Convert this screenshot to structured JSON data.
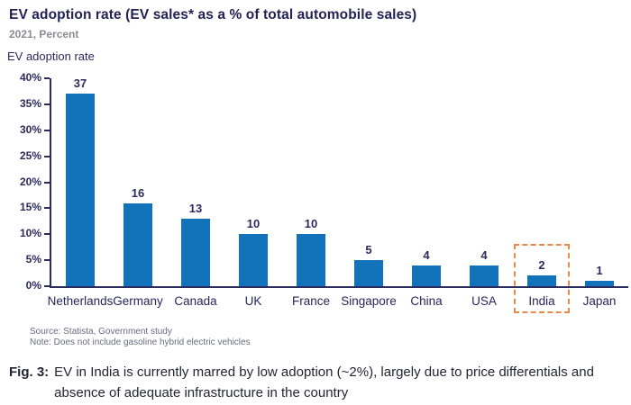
{
  "title": "EV adoption rate (EV sales* as a % of total automobile sales)",
  "subtitle": "2021, Percent",
  "chart_data": {
    "type": "bar",
    "title": "EV adoption rate (EV sales* as a % of total automobile sales)",
    "ylabel": "EV adoption rate",
    "xlabel": "",
    "categories": [
      "Netherlands",
      "Germany",
      "Canada",
      "UK",
      "France",
      "Singapore",
      "China",
      "USA",
      "India",
      "Japan"
    ],
    "values": [
      37,
      16,
      13,
      10,
      10,
      5,
      4,
      4,
      2,
      1
    ],
    "ylim": [
      0,
      40
    ],
    "yticks": [
      0,
      5,
      10,
      15,
      20,
      25,
      30,
      35,
      40
    ],
    "ytick_labels": [
      "0%",
      "5%",
      "10%",
      "15%",
      "20%",
      "25%",
      "30%",
      "35%",
      "40%"
    ],
    "grid": false,
    "legend": "none",
    "bar_color": "#1272BA",
    "axis_color": "#2B2B5E",
    "highlight": {
      "category": "India",
      "style": "dashed-box",
      "color": "#E8894E"
    }
  },
  "footer": {
    "source": "Source: Statista, Government study",
    "note": "Note: Does not include gasoline hybrid electric vehicles"
  },
  "caption": {
    "label": "Fig. 3:",
    "text": "EV in India is currently marred by low adoption (~2%), largely due to price differentials and absence of adequate infrastructure in the country"
  }
}
